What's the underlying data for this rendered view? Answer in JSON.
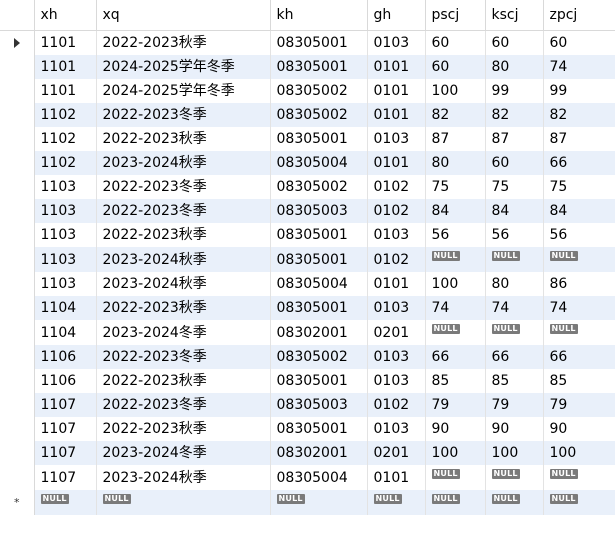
{
  "columns": [
    "xh",
    "xq",
    "kh",
    "gh",
    "pscj",
    "kscj",
    "zpcj"
  ],
  "rows": [
    [
      "1101",
      "2022-2023秋季",
      "08305001",
      "0103",
      "60",
      "60",
      "60"
    ],
    [
      "1101",
      "2024-2025学年冬季",
      "08305001",
      "0101",
      "60",
      "80",
      "74"
    ],
    [
      "1101",
      "2024-2025学年冬季",
      "08305002",
      "0101",
      "100",
      "99",
      "99"
    ],
    [
      "1102",
      "2022-2023冬季",
      "08305002",
      "0101",
      "82",
      "82",
      "82"
    ],
    [
      "1102",
      "2022-2023秋季",
      "08305001",
      "0103",
      "87",
      "87",
      "87"
    ],
    [
      "1102",
      "2023-2024秋季",
      "08305004",
      "0101",
      "80",
      "60",
      "66"
    ],
    [
      "1103",
      "2022-2023冬季",
      "08305002",
      "0102",
      "75",
      "75",
      "75"
    ],
    [
      "1103",
      "2022-2023冬季",
      "08305003",
      "0102",
      "84",
      "84",
      "84"
    ],
    [
      "1103",
      "2022-2023秋季",
      "08305001",
      "0103",
      "56",
      "56",
      "56"
    ],
    [
      "1103",
      "2023-2024秋季",
      "08305001",
      "0102",
      null,
      null,
      null
    ],
    [
      "1103",
      "2023-2024秋季",
      "08305004",
      "0101",
      "100",
      "80",
      "86"
    ],
    [
      "1104",
      "2022-2023秋季",
      "08305001",
      "0103",
      "74",
      "74",
      "74"
    ],
    [
      "1104",
      "2023-2024冬季",
      "08302001",
      "0201",
      null,
      null,
      null
    ],
    [
      "1106",
      "2022-2023冬季",
      "08305002",
      "0103",
      "66",
      "66",
      "66"
    ],
    [
      "1106",
      "2022-2023秋季",
      "08305001",
      "0103",
      "85",
      "85",
      "85"
    ],
    [
      "1107",
      "2022-2023冬季",
      "08305003",
      "0102",
      "79",
      "79",
      "79"
    ],
    [
      "1107",
      "2022-2023秋季",
      "08305001",
      "0103",
      "90",
      "90",
      "90"
    ],
    [
      "1107",
      "2023-2024冬季",
      "08302001",
      "0201",
      "100",
      "100",
      "100"
    ],
    [
      "1107",
      "2023-2024秋季",
      "08305004",
      "0101",
      null,
      null,
      null
    ]
  ],
  "null_label": "NULL",
  "selected_row_index": 0,
  "new_row_marker": "*",
  "colors": {
    "row_alt": "#e9f0fa",
    "null_badge_bg": "#7a7a7a",
    "grid_line": "#e3e3e3"
  },
  "icons": {
    "current_row": "triangle-right-icon",
    "new_row": "asterisk-icon"
  }
}
